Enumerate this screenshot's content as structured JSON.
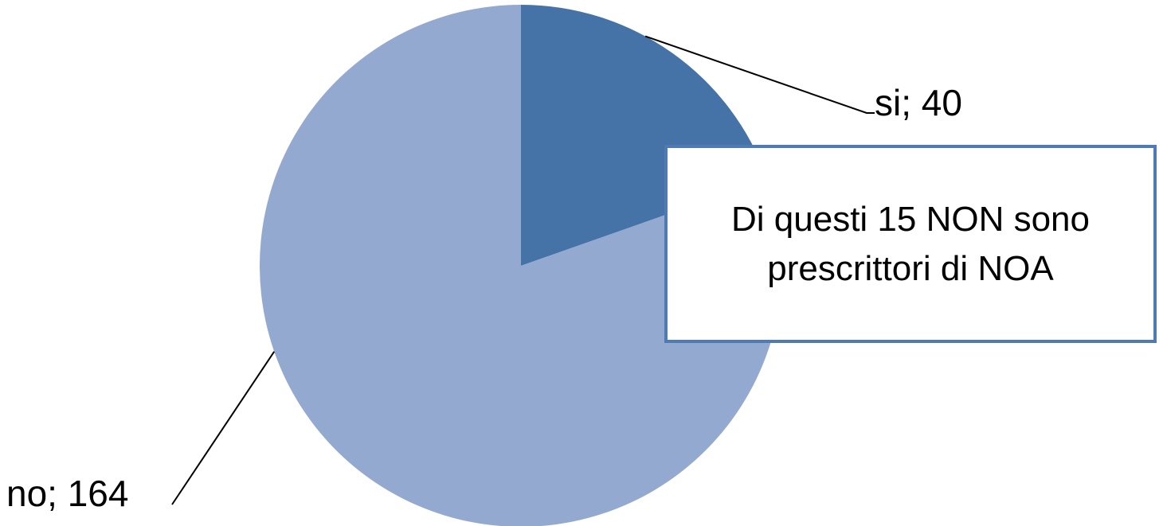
{
  "chart_data": {
    "type": "pie",
    "title": "",
    "slices": [
      {
        "label": "si",
        "value": 40,
        "color": "#4572A7",
        "display": "si; 40"
      },
      {
        "label": "no",
        "value": 164,
        "color": "#94A9D0",
        "display": "no; 164"
      }
    ],
    "start_angle_deg": 0,
    "direction": "clockwise",
    "leader_lines": true,
    "annotation": "Di questi 15 NON sono prescrittori di NOA"
  },
  "colors": {
    "callout_border": "#4F7BB5",
    "leader_line": "#000000"
  }
}
